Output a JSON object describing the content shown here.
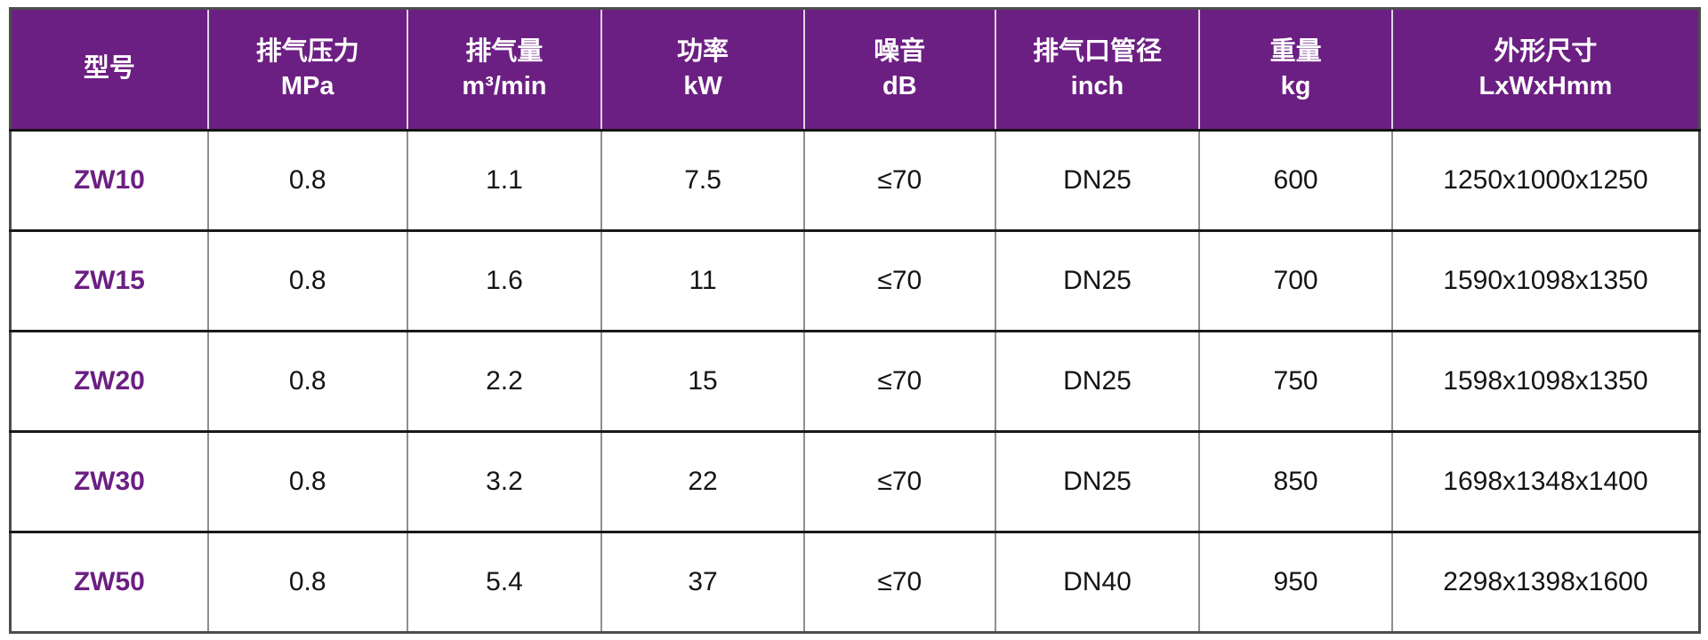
{
  "colors": {
    "header_bg": "#6c1f83",
    "header_text": "#ffffff",
    "model_text": "#6c1f83",
    "body_text": "#141414",
    "row_divider": "#1a1a1a",
    "column_divider": "#8f8f8f"
  },
  "table": {
    "columns": [
      {
        "title": "型号",
        "unit": ""
      },
      {
        "title": "排气压力",
        "unit": "MPa"
      },
      {
        "title": "排气量",
        "unit": "m³/min"
      },
      {
        "title": "功率",
        "unit": "kW"
      },
      {
        "title": "噪音",
        "unit": "dB"
      },
      {
        "title": "排气口管径",
        "unit": "inch"
      },
      {
        "title": "重量",
        "unit": "kg"
      },
      {
        "title": "外形尺寸",
        "unit": "LxWxHmm"
      }
    ],
    "column_widths_pct": [
      11.7,
      11.8,
      11.5,
      12.0,
      11.3,
      12.1,
      11.4,
      18.2
    ],
    "rows": [
      {
        "model": "ZW10",
        "values": [
          "0.8",
          "1.1",
          "7.5",
          "≤70",
          "DN25",
          "600",
          "1250x1000x1250"
        ]
      },
      {
        "model": "ZW15",
        "values": [
          "0.8",
          "1.6",
          "11",
          "≤70",
          "DN25",
          "700",
          "1590x1098x1350"
        ]
      },
      {
        "model": "ZW20",
        "values": [
          "0.8",
          "2.2",
          "15",
          "≤70",
          "DN25",
          "750",
          "1598x1098x1350"
        ]
      },
      {
        "model": "ZW30",
        "values": [
          "0.8",
          "3.2",
          "22",
          "≤70",
          "DN25",
          "850",
          "1698x1348x1400"
        ]
      },
      {
        "model": "ZW50",
        "values": [
          "0.8",
          "5.4",
          "37",
          "≤70",
          "DN40",
          "950",
          "2298x1398x1600"
        ]
      }
    ]
  }
}
